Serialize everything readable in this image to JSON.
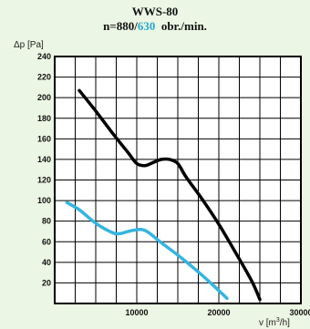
{
  "title": "WWS-80",
  "subtitle": {
    "prefix": "n=880/",
    "highlight": "630",
    "suffix": "  obr./min."
  },
  "chart_data": {
    "type": "line",
    "xlabel": "v [m3/h]",
    "ylabel": "Δp [Pa]",
    "xlim": [
      0,
      30000
    ],
    "ylim": [
      0,
      240
    ],
    "x_ticks": [
      "10000",
      "20000",
      "30000"
    ],
    "x_tick_values": [
      10000,
      20000,
      30000
    ],
    "y_ticks": [
      "20",
      "40",
      "60",
      "80",
      "100",
      "120",
      "140",
      "160",
      "180",
      "200",
      "220",
      "240"
    ],
    "y_tick_values": [
      20,
      40,
      60,
      80,
      100,
      120,
      140,
      160,
      180,
      200,
      220,
      240
    ],
    "grid": true,
    "colors": {
      "n880": "#000000",
      "n630": "#33b5e0"
    },
    "series": [
      {
        "key": "n880",
        "x": [
          3000,
          5000,
          7000,
          9000,
          10000,
          11000,
          12000,
          13000,
          14000,
          15000,
          16000,
          18000,
          20000,
          22000,
          24000,
          25000
        ],
        "y": [
          207,
          187,
          166,
          146,
          136,
          134,
          137,
          140,
          140,
          136,
          123,
          101,
          77,
          50,
          22,
          4
        ]
      },
      {
        "key": "n630",
        "x": [
          1500,
          3000,
          5000,
          7000,
          8000,
          9500,
          11000,
          13000,
          15000,
          17000,
          19000,
          21000
        ],
        "y": [
          98,
          91,
          78,
          69,
          68,
          71,
          71,
          59,
          47,
          34,
          20,
          5
        ]
      }
    ]
  }
}
